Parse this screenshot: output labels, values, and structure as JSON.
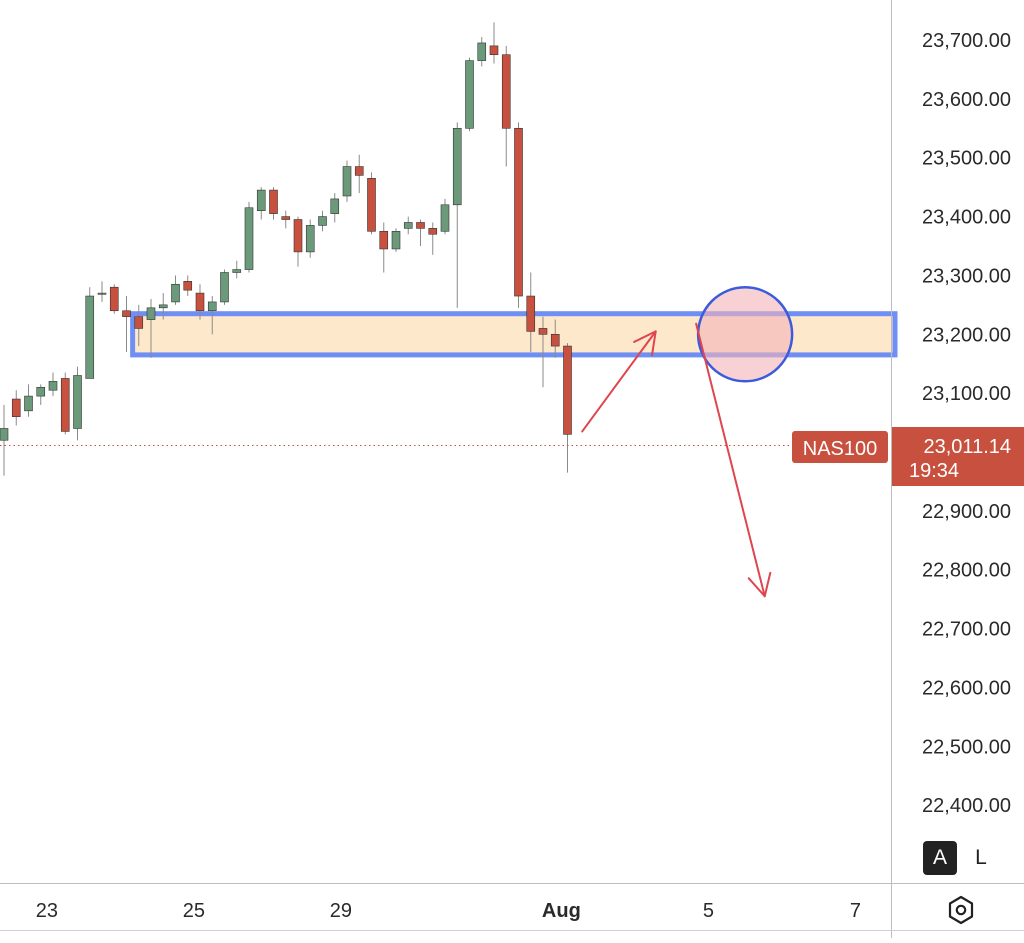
{
  "symbol": "NAS100",
  "last_price": "23,011.14",
  "countdown": "19:34",
  "colors": {
    "up": "#6b9a7b",
    "down": "#c8503f",
    "wick": "#8a8a8a",
    "zone_fill": "#fde8cc",
    "zone_border": "#6f8ff5",
    "circle_fill": "#f3b3b8",
    "circle_stroke": "#3b5bdb",
    "arrow": "#e0454f",
    "price_tag": "#c8503f",
    "grid_line": "#bdbdbd"
  },
  "toolbar": {
    "auto_label": "A",
    "log_label": "L",
    "settings_icon": "hexagon-gear-icon"
  },
  "chart_data": {
    "type": "candlestick",
    "y_ticks": [
      "23,700.00",
      "23,600.00",
      "23,500.00",
      "23,400.00",
      "23,300.00",
      "23,200.00",
      "23,100.00",
      "22,900.00",
      "22,800.00",
      "22,700.00",
      "22,600.00",
      "22,500.00",
      "22,400.00"
    ],
    "y_tick_values": [
      23700,
      23600,
      23500,
      23400,
      23300,
      23200,
      23100,
      22900,
      22800,
      22700,
      22600,
      22500,
      22400
    ],
    "x_ticks": [
      {
        "label": "23",
        "bar": 3.5,
        "bold": false
      },
      {
        "label": "25",
        "bar": 15.5,
        "bold": false
      },
      {
        "label": "29",
        "bar": 27.5,
        "bold": false
      },
      {
        "label": "Aug",
        "bar": 45.5,
        "bold": true
      },
      {
        "label": "5",
        "bar": 57.5,
        "bold": false
      },
      {
        "label": "7",
        "bar": 69.5,
        "bold": false
      }
    ],
    "candles": [
      [
        23020,
        23040,
        23080,
        22960
      ],
      [
        23090,
        23060,
        23105,
        23045
      ],
      [
        23070,
        23095,
        23115,
        23060
      ],
      [
        23095,
        23110,
        23115,
        23080
      ],
      [
        23105,
        23120,
        23135,
        23095
      ],
      [
        23125,
        23035,
        23135,
        23030
      ],
      [
        23040,
        23130,
        23145,
        23020
      ],
      [
        23125,
        23265,
        23280,
        23125
      ],
      [
        23270,
        23270,
        23290,
        23255
      ],
      [
        23280,
        23240,
        23285,
        23235
      ],
      [
        23240,
        23230,
        23265,
        23170
      ],
      [
        23230,
        23210,
        23250,
        23180
      ],
      [
        23225,
        23245,
        23260,
        23160
      ],
      [
        23245,
        23250,
        23270,
        23225
      ],
      [
        23255,
        23285,
        23300,
        23250
      ],
      [
        23290,
        23275,
        23300,
        23265
      ],
      [
        23270,
        23240,
        23285,
        23225
      ],
      [
        23240,
        23255,
        23265,
        23200
      ],
      [
        23255,
        23305,
        23310,
        23250
      ],
      [
        23305,
        23310,
        23325,
        23295
      ],
      [
        23310,
        23415,
        23425,
        23305
      ],
      [
        23410,
        23445,
        23450,
        23395
      ],
      [
        23445,
        23405,
        23450,
        23395
      ],
      [
        23400,
        23395,
        23410,
        23380
      ],
      [
        23395,
        23340,
        23400,
        23315
      ],
      [
        23340,
        23385,
        23395,
        23330
      ],
      [
        23385,
        23400,
        23410,
        23375
      ],
      [
        23405,
        23430,
        23440,
        23390
      ],
      [
        23435,
        23485,
        23495,
        23425
      ],
      [
        23485,
        23470,
        23505,
        23440
      ],
      [
        23465,
        23375,
        23475,
        23370
      ],
      [
        23375,
        23345,
        23390,
        23305
      ],
      [
        23345,
        23375,
        23380,
        23340
      ],
      [
        23380,
        23390,
        23400,
        23370
      ],
      [
        23390,
        23380,
        23395,
        23350
      ],
      [
        23380,
        23370,
        23390,
        23335
      ],
      [
        23375,
        23420,
        23430,
        23370
      ],
      [
        23420,
        23550,
        23560,
        23245
      ],
      [
        23550,
        23665,
        23670,
        23545
      ],
      [
        23665,
        23695,
        23705,
        23655
      ],
      [
        23690,
        23675,
        23730,
        23660
      ],
      [
        23675,
        23550,
        23690,
        23485
      ],
      [
        23550,
        23265,
        23560,
        23245
      ],
      [
        23265,
        23205,
        23305,
        23170
      ],
      [
        23210,
        23200,
        23230,
        23110
      ],
      [
        23200,
        23180,
        23225,
        23160
      ],
      [
        23180,
        23030,
        23185,
        22965
      ]
    ],
    "zone": {
      "top": 23235,
      "bottom": 23165,
      "start_bar": 10.5
    },
    "circle": {
      "bar": 60.5,
      "price": 23200
    },
    "arrow_up": {
      "from_bar": 47.2,
      "from_price": 23035,
      "to_bar": 53.2,
      "to_price": 23205
    },
    "arrow_down": {
      "from_bar": 56.5,
      "from_price": 23218,
      "to_bar": 62.1,
      "to_price": 22755
    },
    "price_line": 23011.14
  }
}
